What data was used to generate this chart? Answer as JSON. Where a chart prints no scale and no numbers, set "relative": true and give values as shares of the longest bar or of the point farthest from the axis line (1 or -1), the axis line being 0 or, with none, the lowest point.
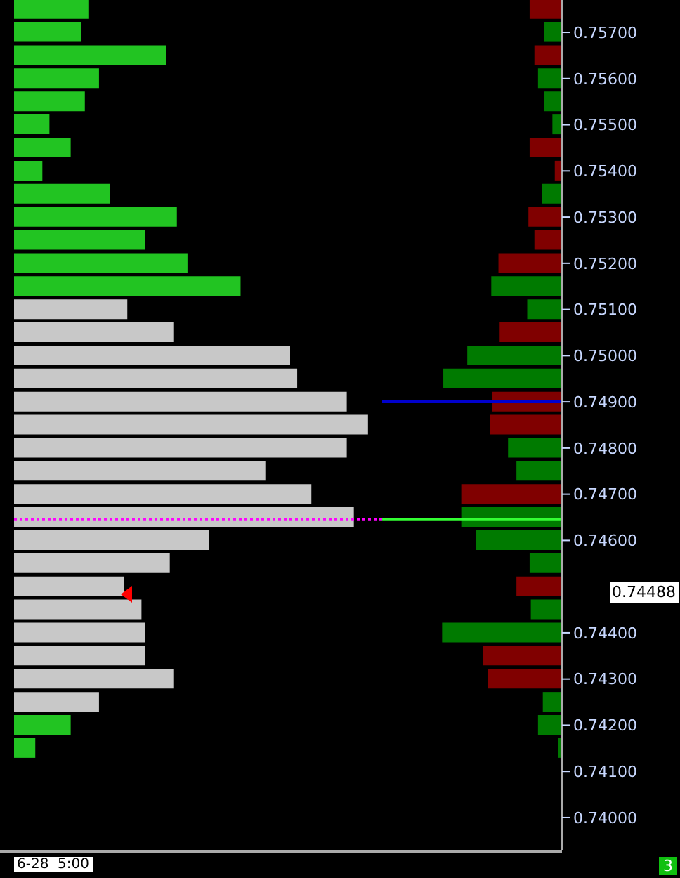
{
  "chart_data": [
    {
      "type": "bar",
      "orientation": "horizontal",
      "relative": true,
      "tick_labels": false,
      "x": [
        0.7575,
        0.757,
        0.7565,
        0.756,
        0.7555,
        0.755,
        0.7545,
        0.754,
        0.7535,
        0.753,
        0.7525,
        0.752,
        0.7515,
        0.751,
        0.7505,
        0.75,
        0.7495,
        0.749,
        0.7485,
        0.748,
        0.7475,
        0.747,
        0.7465,
        0.746,
        0.7455,
        0.745,
        0.7445,
        0.744,
        0.7435,
        0.743,
        0.7425,
        0.742,
        0.7415
      ],
      "values": [
        0.21,
        0.19,
        0.43,
        0.24,
        0.2,
        0.1,
        0.16,
        0.08,
        0.27,
        0.46,
        0.37,
        0.49,
        0.64,
        0.32,
        0.45,
        0.78,
        0.8,
        0.94,
        1,
        0.94,
        0.71,
        0.84,
        0.96,
        0.55,
        0.44,
        0.31,
        0.36,
        0.37,
        0.37,
        0.45,
        0.24,
        0.16,
        0.06
      ],
      "colors": [
        "#22c422",
        "#22c422",
        "#22c422",
        "#22c422",
        "#22c422",
        "#22c422",
        "#22c422",
        "#22c422",
        "#22c422",
        "#22c422",
        "#22c422",
        "#22c422",
        "#22c422",
        "#c8c8c8",
        "#c8c8c8",
        "#c8c8c8",
        "#c8c8c8",
        "#c8c8c8",
        "#c8c8c8",
        "#c8c8c8",
        "#c8c8c8",
        "#c8c8c8",
        "#c8c8c8",
        "#c8c8c8",
        "#c8c8c8",
        "#c8c8c8",
        "#c8c8c8",
        "#c8c8c8",
        "#c8c8c8",
        "#c8c8c8",
        "#c8c8c8",
        "#22c422",
        "#22c422"
      ],
      "ylim": [
        0.7393,
        0.7577
      ],
      "ref_lines": [
        {
          "axis": "y",
          "value": 0.74645,
          "color": "#ff00ff",
          "line_style": "dotted"
        }
      ],
      "annotations": [
        "6-28  5:00"
      ]
    },
    {
      "type": "bar",
      "orientation": "horizontal",
      "relative": true,
      "tick_labels": "y",
      "x": [
        0.7575,
        0.757,
        0.7565,
        0.756,
        0.7555,
        0.755,
        0.7545,
        0.754,
        0.7535,
        0.753,
        0.7525,
        0.752,
        0.7515,
        0.751,
        0.7505,
        0.75,
        0.7495,
        0.749,
        0.7485,
        0.748,
        0.7475,
        0.747,
        0.7465,
        0.746,
        0.7455,
        0.745,
        0.7445,
        0.744,
        0.7435,
        0.743,
        0.7425,
        0.742,
        0.7415
      ],
      "values": [
        0.27,
        0.15,
        0.23,
        0.2,
        0.15,
        0.08,
        0.27,
        0.06,
        0.17,
        0.28,
        0.23,
        0.53,
        0.59,
        0.29,
        0.52,
        0.79,
        0.99,
        0.58,
        0.6,
        0.45,
        0.38,
        0.84,
        0.84,
        0.72,
        0.27,
        0.38,
        0.26,
        1,
        0.66,
        0.62,
        0.16,
        0.2,
        0.03
      ],
      "colors": [
        "#800000",
        "#007a00",
        "#800000",
        "#007a00",
        "#007a00",
        "#007a00",
        "#800000",
        "#800000",
        "#007a00",
        "#800000",
        "#800000",
        "#800000",
        "#007a00",
        "#007a00",
        "#800000",
        "#007a00",
        "#007a00",
        "#800000",
        "#800000",
        "#007a00",
        "#007a00",
        "#800000",
        "#007a00",
        "#007a00",
        "#007a00",
        "#800000",
        "#007a00",
        "#007a00",
        "#800000",
        "#800000",
        "#007a00",
        "#007a00",
        "#007a00"
      ],
      "ylim": [
        0.7393,
        0.7577
      ],
      "yticks": [
        {
          "value": 0.74,
          "label": "0.74000"
        },
        {
          "value": 0.741,
          "label": "0.74100"
        },
        {
          "value": 0.742,
          "label": "0.74200"
        },
        {
          "value": 0.743,
          "label": "0.74300"
        },
        {
          "value": 0.744,
          "label": "0.74400"
        },
        {
          "value": 0.746,
          "label": "0.74600"
        },
        {
          "value": 0.747,
          "label": "0.74700"
        },
        {
          "value": 0.748,
          "label": "0.74800"
        },
        {
          "value": 0.749,
          "label": "0.74900"
        },
        {
          "value": 0.75,
          "label": "0.75000"
        },
        {
          "value": 0.751,
          "label": "0.75100"
        },
        {
          "value": 0.752,
          "label": "0.75200"
        },
        {
          "value": 0.753,
          "label": "0.75300"
        },
        {
          "value": 0.754,
          "label": "0.75400"
        },
        {
          "value": 0.755,
          "label": "0.75500"
        },
        {
          "value": 0.756,
          "label": "0.75600"
        },
        {
          "value": 0.757,
          "label": "0.75700"
        }
      ],
      "ref_lines": [
        {
          "axis": "y",
          "value": 0.74645,
          "color": "#33ff33"
        },
        {
          "axis": "y",
          "value": 0.749,
          "color": "#0000cc"
        }
      ],
      "annotations": [
        "0.74488",
        "3"
      ]
    }
  ]
}
